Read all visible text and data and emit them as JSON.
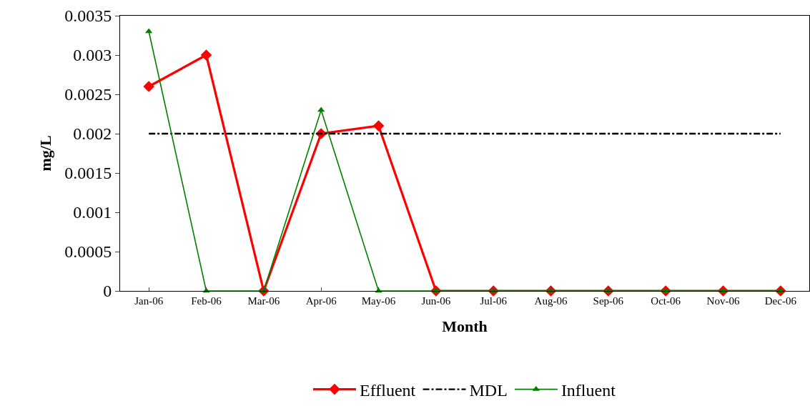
{
  "chart_data": {
    "type": "line",
    "xlabel": "Month",
    "ylabel": "mg/L",
    "categories": [
      "Jan-06",
      "Feb-06",
      "Mar-06",
      "Apr-06",
      "May-06",
      "Jun-06",
      "Jul-06",
      "Aug-06",
      "Sep-06",
      "Oct-06",
      "Nov-06",
      "Dec-06"
    ],
    "series": [
      {
        "name": "Effluent",
        "color": "#ff0000",
        "marker": "diamond",
        "line_style": "solid",
        "values": [
          0.0026,
          0.003,
          0,
          0.002,
          0.0021,
          0,
          0,
          0,
          0,
          0,
          0,
          0
        ]
      },
      {
        "name": "MDL",
        "color": "#000000",
        "marker": "none",
        "line_style": "dashed",
        "values": [
          0.002,
          0.002,
          0.002,
          0.002,
          0.002,
          0.002,
          0.002,
          0.002,
          0.002,
          0.002,
          0.002,
          0.002
        ]
      },
      {
        "name": "Influent",
        "color": "#008000",
        "marker": "triangle",
        "line_style": "solid",
        "values": [
          0.0033,
          0,
          0,
          0.0023,
          0,
          0,
          0,
          0,
          0,
          0,
          0,
          0
        ]
      }
    ],
    "ylim": [
      0,
      0.0035
    ],
    "yticks": [
      0,
      0.0005,
      0.001,
      0.0015,
      0.002,
      0.0025,
      0.003,
      0.0035
    ],
    "grid": false,
    "legend": "bottom"
  }
}
